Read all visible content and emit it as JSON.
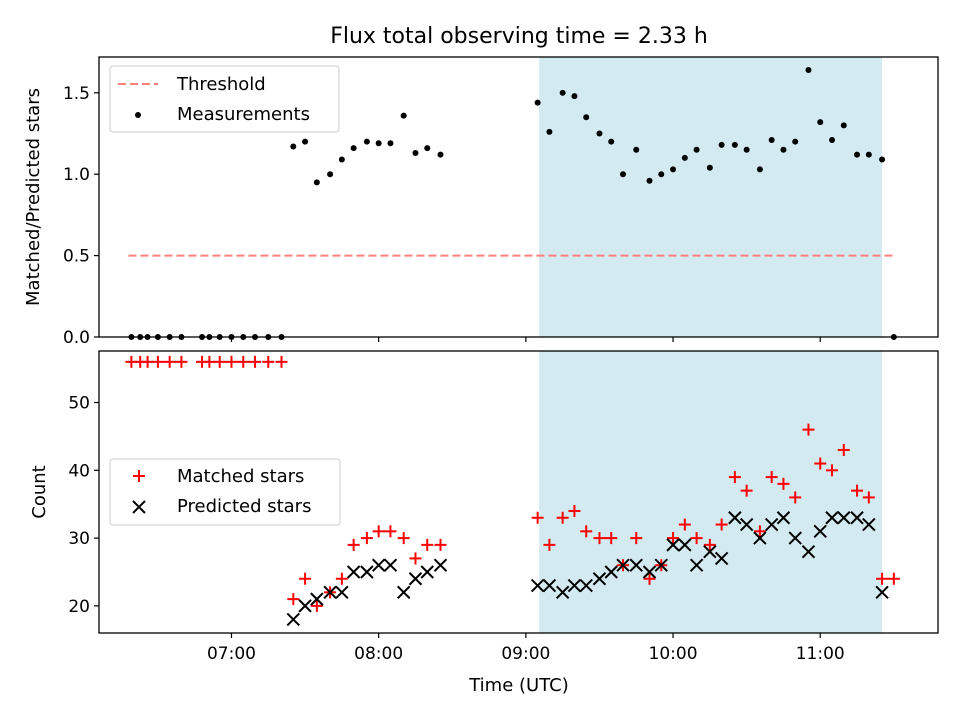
{
  "chart_data": [
    {
      "type": "scatter",
      "title": "Flux total observing time = 2.33 h",
      "xlabel": "",
      "ylabel": "Matched/Predicted stars",
      "xlim": [
        6.1,
        11.8
      ],
      "ylim": [
        0,
        1.72
      ],
      "yticks": [
        0.0,
        0.5,
        1.0,
        1.5
      ],
      "yticklabels": [
        "0.0",
        "0.5",
        "1.0",
        "1.5"
      ],
      "highlight_span": {
        "x": [
          9.09,
          11.42
        ],
        "color": "#d3eaf0"
      },
      "legend_position": "upper-left",
      "series": [
        {
          "name": "Threshold",
          "style": "dashed-line",
          "color": "#ff7f7f",
          "x": [
            6.3,
            11.5
          ],
          "y": [
            0.5,
            0.5
          ]
        },
        {
          "name": "Measurements",
          "style": "dot",
          "color": "#000000",
          "x": [
            6.32,
            6.38,
            6.43,
            6.5,
            6.58,
            6.66,
            6.8,
            6.85,
            6.92,
            7.0,
            7.08,
            7.16,
            7.25,
            7.34,
            7.42,
            7.5,
            7.58,
            7.67,
            7.75,
            7.83,
            7.92,
            8.0,
            8.08,
            8.17,
            8.25,
            8.33,
            8.42,
            9.08,
            9.16,
            9.25,
            9.33,
            9.41,
            9.5,
            9.58,
            9.66,
            9.75,
            9.84,
            9.92,
            10.0,
            10.08,
            10.16,
            10.25,
            10.33,
            10.42,
            10.5,
            10.59,
            10.67,
            10.75,
            10.83,
            10.92,
            11.0,
            11.08,
            11.16,
            11.25,
            11.33,
            11.42,
            11.5
          ],
          "y": [
            0.0,
            0.0,
            0.0,
            0.0,
            0.0,
            0.0,
            0.0,
            0.0,
            0.0,
            0.0,
            0.0,
            0.0,
            0.0,
            0.0,
            1.17,
            1.2,
            0.95,
            1.0,
            1.09,
            1.16,
            1.2,
            1.19,
            1.19,
            1.36,
            1.13,
            1.16,
            1.12,
            1.44,
            1.26,
            1.5,
            1.48,
            1.35,
            1.25,
            1.2,
            1.0,
            1.15,
            0.96,
            1.0,
            1.03,
            1.1,
            1.15,
            1.04,
            1.18,
            1.18,
            1.15,
            1.03,
            1.21,
            1.15,
            1.2,
            1.64,
            1.32,
            1.21,
            1.3,
            1.12,
            1.12,
            1.09,
            0.0
          ]
        }
      ]
    },
    {
      "type": "scatter",
      "title": "",
      "xlabel": "Time (UTC)",
      "ylabel": "Count",
      "xlim": [
        6.1,
        11.8
      ],
      "ylim": [
        16,
        57.6
      ],
      "xticks": [
        7,
        8,
        9,
        10,
        11
      ],
      "xticklabels": [
        "07:00",
        "08:00",
        "09:00",
        "10:00",
        "11:00"
      ],
      "yticks": [
        20,
        30,
        40,
        50
      ],
      "yticklabels": [
        "20",
        "30",
        "40",
        "50"
      ],
      "highlight_span": {
        "x": [
          9.09,
          11.42
        ],
        "color": "#d3eaf0"
      },
      "legend_position": "center-left",
      "series": [
        {
          "name": "Matched stars",
          "marker": "plus",
          "color": "#ff0000",
          "x": [
            6.32,
            6.38,
            6.43,
            6.5,
            6.58,
            6.66,
            6.8,
            6.85,
            6.92,
            7.0,
            7.08,
            7.16,
            7.25,
            7.34,
            7.42,
            7.5,
            7.58,
            7.67,
            7.75,
            7.83,
            7.92,
            8.0,
            8.08,
            8.17,
            8.25,
            8.33,
            8.42,
            9.08,
            9.16,
            9.25,
            9.33,
            9.41,
            9.5,
            9.58,
            9.66,
            9.75,
            9.84,
            9.92,
            10.0,
            10.08,
            10.16,
            10.25,
            10.33,
            10.42,
            10.5,
            10.59,
            10.67,
            10.75,
            10.83,
            10.92,
            11.0,
            11.08,
            11.16,
            11.25,
            11.33,
            11.42,
            11.5
          ],
          "y": [
            56,
            56,
            56,
            56,
            56,
            56,
            56,
            56,
            56,
            56,
            56,
            56,
            56,
            56,
            21,
            24,
            20,
            22,
            24,
            29,
            30,
            31,
            31,
            30,
            27,
            29,
            29,
            33,
            29,
            33,
            34,
            31,
            30,
            30,
            26,
            30,
            24,
            26,
            30,
            32,
            30,
            29,
            32,
            39,
            37,
            31,
            39,
            38,
            36,
            46,
            41,
            40,
            43,
            37,
            36,
            24,
            24
          ]
        },
        {
          "name": "Predicted stars",
          "marker": "x",
          "color": "#000000",
          "x": [
            7.42,
            7.5,
            7.58,
            7.67,
            7.75,
            7.83,
            7.92,
            8.0,
            8.08,
            8.17,
            8.25,
            8.33,
            8.42,
            9.08,
            9.16,
            9.25,
            9.33,
            9.41,
            9.5,
            9.58,
            9.66,
            9.75,
            9.84,
            9.92,
            10.0,
            10.08,
            10.16,
            10.25,
            10.33,
            10.42,
            10.5,
            10.59,
            10.67,
            10.75,
            10.83,
            10.92,
            11.0,
            11.08,
            11.16,
            11.25,
            11.33,
            11.42
          ],
          "y": [
            18,
            20,
            21,
            22,
            22,
            25,
            25,
            26,
            26,
            22,
            24,
            25,
            26,
            23,
            23,
            22,
            23,
            23,
            24,
            25,
            26,
            26,
            25,
            26,
            29,
            29,
            26,
            28,
            27,
            33,
            32,
            30,
            32,
            33,
            30,
            28,
            31,
            33,
            33,
            33,
            32,
            22
          ]
        }
      ]
    }
  ]
}
